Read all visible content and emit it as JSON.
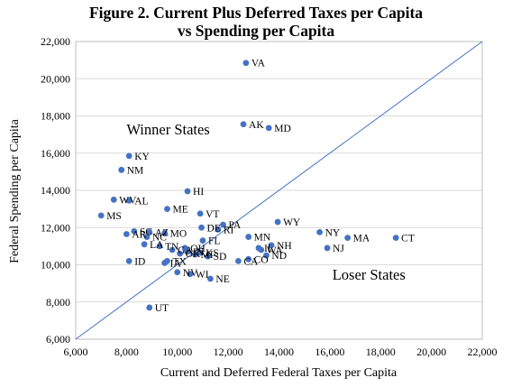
{
  "chart_data": {
    "type": "scatter",
    "title": "Figure 2. Current Plus Deferred Taxes per Capita vs Spending per Capita",
    "title_lines": [
      "Figure 2. Current Plus Deferred Taxes per Capita",
      "vs Spending per Capita"
    ],
    "xlabel": "Current and Deferred Federal Taxes per Capita",
    "ylabel": "Federal Spending per Capita",
    "xlim": [
      6000,
      22000
    ],
    "ylim": [
      6000,
      22000
    ],
    "x_ticks": [
      "6,000",
      "8,000",
      "10,000",
      "12,000",
      "14,000",
      "16,000",
      "18,000",
      "20,000",
      "22,000"
    ],
    "y_ticks": [
      "6,000",
      "8,000",
      "10,000",
      "12,000",
      "14,000",
      "16,000",
      "18,000",
      "20,000",
      "22,000"
    ],
    "grid": "horizontal",
    "reference_line": {
      "type": "y=x",
      "from": [
        6000,
        6000
      ],
      "to": [
        22000,
        22000
      ]
    },
    "annotations": [
      {
        "text": "Winner States",
        "x": 8000,
        "y": 17000
      },
      {
        "text": "Loser States",
        "x": 16100,
        "y": 9200
      }
    ],
    "points": [
      {
        "label": "VA",
        "x": 12700,
        "y": 20850
      },
      {
        "label": "AK",
        "x": 12600,
        "y": 17550
      },
      {
        "label": "MD",
        "x": 13600,
        "y": 17350
      },
      {
        "label": "KY",
        "x": 8100,
        "y": 15850
      },
      {
        "label": "NM",
        "x": 7800,
        "y": 15100
      },
      {
        "label": "HI",
        "x": 10400,
        "y": 13950
      },
      {
        "label": "WV",
        "x": 7500,
        "y": 13500
      },
      {
        "label": "AL",
        "x": 8100,
        "y": 13450
      },
      {
        "label": "ME",
        "x": 9600,
        "y": 13000
      },
      {
        "label": "VT",
        "x": 10900,
        "y": 12750
      },
      {
        "label": "MS",
        "x": 7000,
        "y": 12650
      },
      {
        "label": "WY",
        "x": 13950,
        "y": 12300
      },
      {
        "label": "PA",
        "x": 11800,
        "y": 12150
      },
      {
        "label": "DE",
        "x": 10950,
        "y": 12000
      },
      {
        "label": "RI",
        "x": 11600,
        "y": 11900
      },
      {
        "label": "SC",
        "x": 8300,
        "y": 11800
      },
      {
        "label": "AZ",
        "x": 8900,
        "y": 11750
      },
      {
        "label": "MO",
        "x": 9500,
        "y": 11700
      },
      {
        "label": "AR",
        "x": 8000,
        "y": 11650
      },
      {
        "label": "NC",
        "x": 8800,
        "y": 11500
      },
      {
        "label": "NY",
        "x": 15600,
        "y": 11750
      },
      {
        "label": "MN",
        "x": 12800,
        "y": 11500
      },
      {
        "label": "MA",
        "x": 16700,
        "y": 11450
      },
      {
        "label": "CT",
        "x": 18600,
        "y": 11450
      },
      {
        "label": "FL",
        "x": 11000,
        "y": 11300
      },
      {
        "label": "LA",
        "x": 8700,
        "y": 11100
      },
      {
        "label": "TN",
        "x": 9300,
        "y": 11000
      },
      {
        "label": "OH",
        "x": 10300,
        "y": 10900
      },
      {
        "label": "GA",
        "x": 9800,
        "y": 10800
      },
      {
        "label": "IN",
        "x": 10400,
        "y": 10700
      },
      {
        "label": "KS",
        "x": 10900,
        "y": 10650
      },
      {
        "label": "OK",
        "x": 10100,
        "y": 10600
      },
      {
        "label": "MI",
        "x": 10700,
        "y": 10550
      },
      {
        "label": "SD",
        "x": 11200,
        "y": 10450
      },
      {
        "label": "NH",
        "x": 13700,
        "y": 11050
      },
      {
        "label": "IL",
        "x": 13200,
        "y": 10900
      },
      {
        "label": "WA",
        "x": 13300,
        "y": 10800
      },
      {
        "label": "NJ",
        "x": 15900,
        "y": 10900
      },
      {
        "label": "ND",
        "x": 13500,
        "y": 10500
      },
      {
        "label": "CO",
        "x": 12800,
        "y": 10300
      },
      {
        "label": "CA",
        "x": 12400,
        "y": 10200
      },
      {
        "label": "ID",
        "x": 8100,
        "y": 10200
      },
      {
        "label": "TX",
        "x": 9600,
        "y": 10200
      },
      {
        "label": "IA",
        "x": 9500,
        "y": 10100
      },
      {
        "label": "NV",
        "x": 10000,
        "y": 9600
      },
      {
        "label": "WI",
        "x": 10500,
        "y": 9500
      },
      {
        "label": "NE",
        "x": 11300,
        "y": 9250
      },
      {
        "label": "UT",
        "x": 8900,
        "y": 7700
      }
    ],
    "marker_color": "#4472c4",
    "line_color": "#4472c4"
  }
}
